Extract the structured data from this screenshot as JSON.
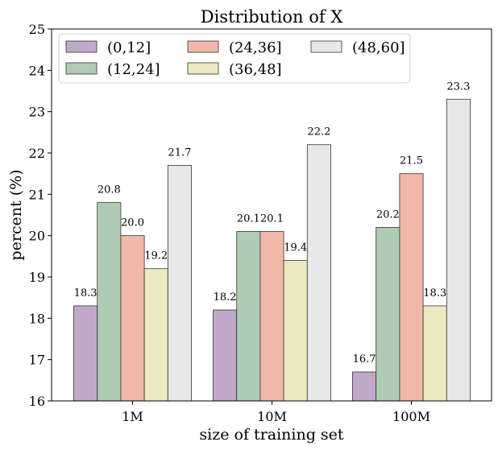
{
  "chart_data": {
    "type": "bar",
    "title": "Distribution of X",
    "xlabel": "size of training set",
    "ylabel": "percent (%)",
    "categories": [
      "1M",
      "10M",
      "100M"
    ],
    "ylim": [
      16,
      25
    ],
    "yticks": [
      "16",
      "17",
      "18",
      "19",
      "20",
      "21",
      "22",
      "23",
      "24",
      "25"
    ],
    "grid": false,
    "legend_position": "top-left",
    "series": [
      {
        "name": "(0,12]",
        "values": [
          18.3,
          18.2,
          16.7
        ],
        "labels": [
          "18.3",
          "18.2",
          "16.7"
        ],
        "color": "#c0a9c8"
      },
      {
        "name": "(12,24]",
        "values": [
          20.8,
          20.1,
          20.2
        ],
        "labels": [
          "20.8",
          "20.1",
          "20.2"
        ],
        "color": "#b0cbb3"
      },
      {
        "name": "(24,36]",
        "values": [
          20.0,
          20.1,
          21.5
        ],
        "labels": [
          "20.0",
          "20.1",
          "21.5"
        ],
        "color": "#efb8a8"
      },
      {
        "name": "(36,48]",
        "values": [
          19.2,
          19.4,
          18.3
        ],
        "labels": [
          "19.2",
          "19.4",
          "18.3"
        ],
        "color": "#ede9c0"
      },
      {
        "name": "(48,60]",
        "values": [
          21.7,
          22.2,
          23.3
        ],
        "labels": [
          "21.7",
          "22.2",
          "23.3"
        ],
        "color": "#e8e8e8"
      }
    ]
  }
}
